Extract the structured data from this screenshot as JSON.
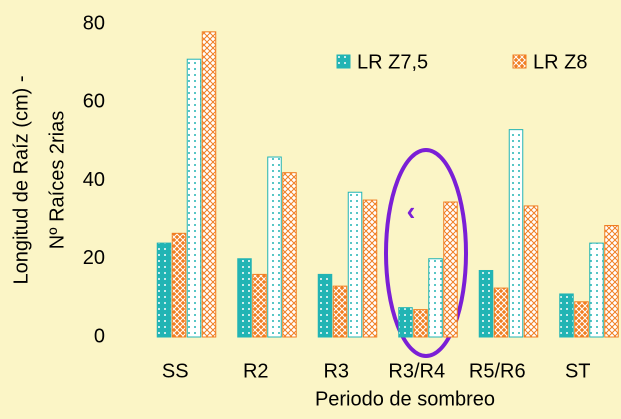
{
  "chart_data": {
    "type": "bar",
    "xlabel": "Periodo de sombreo",
    "ylabel": [
      "Longitud de Raíz (cm) -",
      "Nº Raíces 2rias"
    ],
    "categories": [
      "SS",
      "R2",
      "R3",
      "R3/R4",
      "R5/R6",
      "ST"
    ],
    "series": [
      {
        "name": "LR Z7,5",
        "color": "#22b4b4",
        "values": [
          24,
          20,
          16,
          7.5,
          17,
          11
        ]
      },
      {
        "name": "LR Z8",
        "color": "#f07e22",
        "values": [
          26.5,
          16,
          13,
          7,
          12.5,
          9
        ]
      },
      {
        "color": "#22b4b4",
        "values": [
          71,
          46,
          37,
          20,
          53,
          24
        ]
      },
      {
        "color": "#f07e22",
        "values": [
          78,
          42,
          35,
          34.5,
          33.5,
          28.5
        ]
      }
    ],
    "ylim": [
      0,
      80
    ],
    "yticks": [
      0,
      20,
      40,
      60,
      80
    ],
    "legend": "upper right",
    "annotations": [
      "‹"
    ]
  }
}
